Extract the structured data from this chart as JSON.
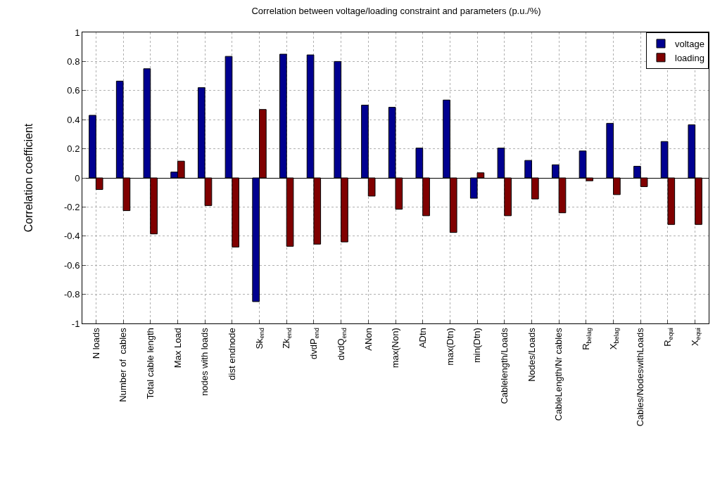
{
  "chart_data": {
    "type": "bar",
    "title": "Correlation between voltage/loading constraint and parameters (p.u./%)",
    "ylabel": "Correlation coefficient",
    "categories": [
      "N loads",
      "Number of  cables",
      "Total cable length",
      "Max Load",
      "nodes with loads",
      "dist endnode",
      "Sk$_{end}$",
      "Zk$_{end}$",
      "dvdP$_{end}$",
      "dvdQ$_{end}$",
      "ANon",
      "max(Non)",
      "ADtn",
      "max(Dtn)",
      "min(Dtn)",
      "Cablelength/Loads",
      "Nodes/Loads",
      "CableLength/Nr cables",
      "R$_{belag}$",
      "X$_{belag}$",
      "Cables/NodeswithLoads",
      "R$_{equi}$",
      "X$_{equi}$"
    ],
    "series": [
      {
        "name": "voltage",
        "color": "#000090",
        "values": [
          0.43,
          0.665,
          0.75,
          0.04,
          0.62,
          0.835,
          -0.85,
          0.85,
          0.845,
          0.8,
          0.5,
          0.485,
          0.205,
          0.535,
          -0.14,
          0.205,
          0.12,
          0.09,
          0.185,
          0.375,
          0.08,
          0.25,
          0.365
        ]
      },
      {
        "name": "loading",
        "color": "#800000",
        "values": [
          -0.08,
          -0.225,
          -0.385,
          0.115,
          -0.19,
          -0.475,
          0.47,
          -0.47,
          -0.455,
          -0.44,
          -0.125,
          -0.215,
          -0.26,
          -0.375,
          0.035,
          -0.26,
          -0.145,
          -0.24,
          -0.02,
          -0.115,
          -0.06,
          -0.32,
          -0.32
        ]
      }
    ],
    "ylim": [
      -1,
      1
    ],
    "yticks": [
      -1,
      -0.8,
      -0.6,
      -0.4,
      -0.2,
      0,
      0.2,
      0.4,
      0.6,
      0.8,
      1
    ],
    "grid": true,
    "legend": "top right"
  }
}
